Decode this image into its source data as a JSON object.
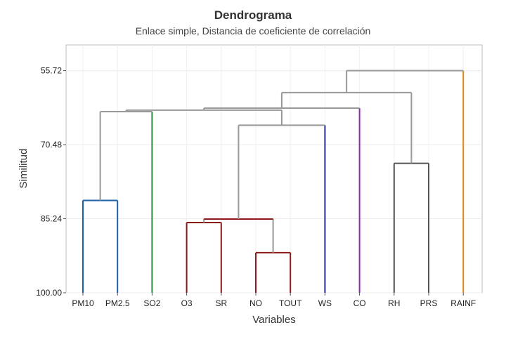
{
  "chart_data": {
    "type": "dendrogram",
    "title": "Dendrograma",
    "subtitle": "Enlace simple, Distancia de coeficiente de correlación",
    "xlabel": "Variables",
    "ylabel": "Similitud",
    "y_ticks": [
      "55.72",
      "70.48",
      "85.24",
      "100.00"
    ],
    "y_tick_values": [
      55.72,
      70.48,
      85.24,
      100.0
    ],
    "ylim": [
      50.6,
      100.0
    ],
    "grid": true,
    "leaves": [
      "PM10",
      "PM2.5",
      "SO2",
      "O3",
      "SR",
      "NO",
      "TOUT",
      "WS",
      "CO",
      "RH",
      "PRS",
      "RAINF"
    ],
    "merges": [
      {
        "id": "m1",
        "left": "PM10",
        "right": "PM2.5",
        "similarity": 81.6,
        "color": "#1f5fa8"
      },
      {
        "id": "m2",
        "left": "NO",
        "right": "TOUT",
        "similarity": 92.0,
        "color": "#8b1a1a"
      },
      {
        "id": "m3",
        "left": "O3",
        "right": "SR",
        "similarity": 86.0,
        "color": "#8b1a1a"
      },
      {
        "id": "m4",
        "left": "m3",
        "right": "m2",
        "similarity": 85.3,
        "color": "#8b1a1a"
      },
      {
        "id": "m5",
        "left": "m4",
        "right": "WS",
        "similarity": 66.6,
        "color": "#999999"
      },
      {
        "id": "m6",
        "left": "m1",
        "right": "SO2",
        "similarity": 63.9,
        "color": "#999999"
      },
      {
        "id": "m7",
        "left": "m6",
        "right": "m5",
        "similarity": 63.6,
        "color": "#999999"
      },
      {
        "id": "m8",
        "left": "m7",
        "right": "CO",
        "similarity": 63.2,
        "color": "#999999"
      },
      {
        "id": "m9",
        "left": "RH",
        "right": "PRS",
        "similarity": 74.2,
        "color": "#555555"
      },
      {
        "id": "m10",
        "left": "m8",
        "right": "m9",
        "similarity": 60.1,
        "color": "#999999"
      },
      {
        "id": "m11",
        "left": "m10",
        "right": "RAINF",
        "similarity": 55.72,
        "color": "#999999"
      }
    ],
    "leaf_colors": {
      "PM10": "#1f5fa8",
      "PM2.5": "#1f5fa8",
      "SO2": "#2e8b3e",
      "O3": "#8b1a1a",
      "SR": "#8b1a1a",
      "NO": "#8b1a1a",
      "TOUT": "#8b1a1a",
      "WS": "#2a2a8a",
      "CO": "#8a2bb0",
      "RH": "#555555",
      "PRS": "#555555",
      "RAINF": "#e08a10"
    }
  }
}
